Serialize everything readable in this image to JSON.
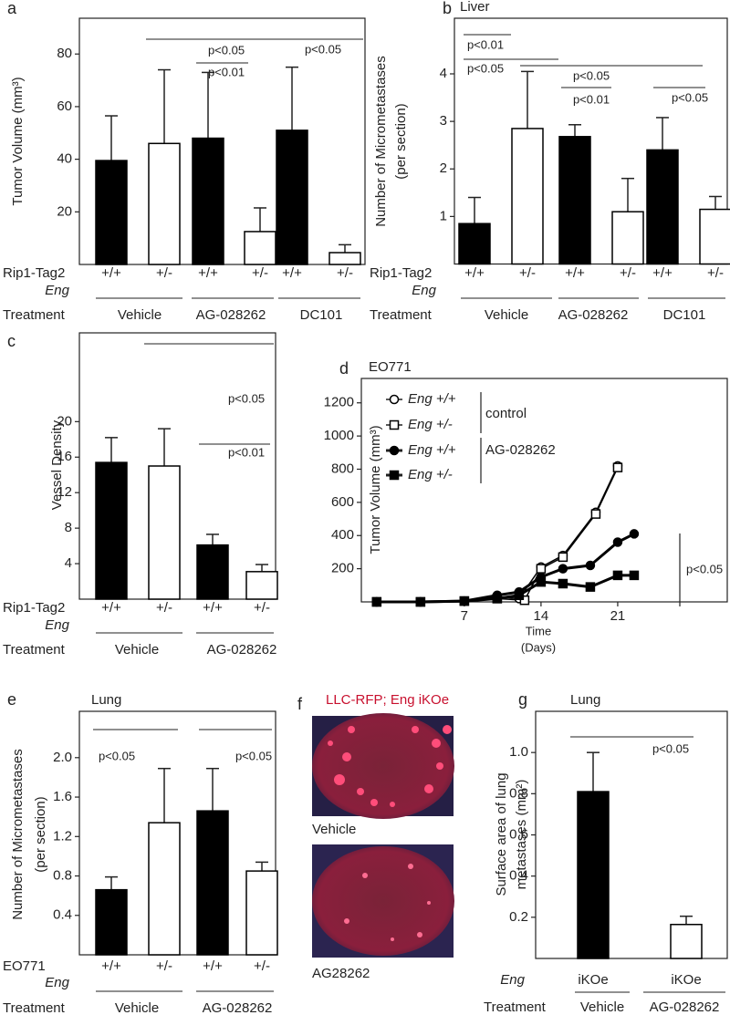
{
  "chart_data": [
    {
      "type": "bar",
      "label": "a",
      "ylabel": [
        "Tumor Volume (mm³)"
      ],
      "categories": [
        "+/+",
        "+/-",
        "+/+",
        "+/-",
        "+/+",
        "+/-"
      ],
      "values": [
        39.5,
        46,
        48,
        12.5,
        51,
        4.5
      ],
      "errors": [
        17,
        28,
        25,
        9,
        24,
        3
      ],
      "colors": [
        "#000000",
        "#ffffff",
        "#000000",
        "#ffffff",
        "#000000",
        "#ffffff"
      ],
      "row_labels": [
        "Rip1-Tag2",
        "Eng",
        "Treatment"
      ],
      "groups": [
        "Vehicle",
        "AG-028262",
        "DC101"
      ],
      "annotations": [
        "p<0.05",
        "p<0.01",
        "p<0.05"
      ],
      "ylim": [
        0,
        93.6
      ],
      "yticks": [
        20,
        40,
        60,
        80
      ]
    },
    {
      "type": "bar",
      "label": "b",
      "title": "Liver",
      "ylabel": [
        "Number of Micrometastases",
        "(per section)"
      ],
      "categories": [
        "+/+",
        "+/-",
        "+/+",
        "+/-",
        "+/+",
        "+/-"
      ],
      "values": [
        0.85,
        2.85,
        2.68,
        1.1,
        2.4,
        1.15
      ],
      "errors": [
        0.55,
        1.2,
        0.25,
        0.7,
        0.68,
        0.27
      ],
      "colors": [
        "#000000",
        "#ffffff",
        "#000000",
        "#ffffff",
        "#000000",
        "#ffffff"
      ],
      "row_labels": [
        "Rip1-Tag2",
        "Eng",
        "Treatment"
      ],
      "groups": [
        "Vehicle",
        "AG-028262",
        "DC101"
      ],
      "annotations": [
        "p<0.01",
        "p<0.05",
        "p<0.05",
        "p<0.01",
        "p<0.05"
      ],
      "ylim": [
        0,
        5.17
      ],
      "yticks": [
        1,
        2,
        3,
        4
      ]
    },
    {
      "type": "bar",
      "label": "c",
      "ylabel": [
        "Vessel Density"
      ],
      "categories": [
        "+/+",
        "+/-",
        "+/+",
        "+/-"
      ],
      "values": [
        15.4,
        15,
        6.1,
        3.1
      ],
      "errors": [
        2.8,
        4.2,
        1.2,
        0.8
      ],
      "colors": [
        "#000000",
        "#ffffff",
        "#000000",
        "#ffffff"
      ],
      "row_labels": [
        "Rip1-Tag2",
        "Eng",
        "Treatment"
      ],
      "groups": [
        "Vehicle",
        "AG-028262"
      ],
      "annotations": [
        "p<0.05",
        "p<0.01"
      ],
      "ylim": [
        0,
        30
      ],
      "yticks": [
        4,
        8,
        12,
        16,
        20
      ]
    },
    {
      "type": "line",
      "label": "d",
      "title": "EO771",
      "ylabel": "Tumor Volume (mm³)",
      "xlabel": [
        "Time",
        "(Days)"
      ],
      "series": [
        {
          "name": "Eng +/+",
          "marker": "circle",
          "filled": false,
          "color": "#000000",
          "x": [
            -1,
            3,
            7,
            10,
            12,
            14,
            16,
            19,
            21
          ],
          "values": [
            0,
            0,
            5,
            30,
            20,
            210,
            280,
            540,
            820
          ]
        },
        {
          "name": "Eng +/-",
          "marker": "square",
          "filled": false,
          "color": "#000000",
          "x": [
            -1,
            3,
            7,
            10,
            12.5,
            14,
            16,
            19,
            21
          ],
          "values": [
            0,
            0,
            5,
            20,
            10,
            200,
            270,
            530,
            810
          ]
        },
        {
          "name": "Eng +/+",
          "marker": "circle",
          "filled": true,
          "color": "#000000",
          "x": [
            -1,
            3,
            7,
            10,
            12,
            14,
            16,
            18.5,
            21,
            22.5
          ],
          "values": [
            0,
            0,
            5,
            40,
            60,
            150,
            200,
            220,
            360,
            410
          ]
        },
        {
          "name": "Eng +/-",
          "marker": "square",
          "filled": true,
          "color": "#000000",
          "x": [
            -1,
            3,
            7,
            10,
            12,
            14,
            16,
            18.5,
            21,
            22.5
          ],
          "values": [
            0,
            0,
            5,
            20,
            40,
            120,
            110,
            90,
            160,
            160
          ]
        }
      ],
      "legend_groups": [
        "control",
        "AG-028262"
      ],
      "annotations": [
        "p<0.05"
      ],
      "xlim": [
        -2.4,
        31
      ],
      "xticks": [
        7,
        14,
        21
      ],
      "ylim": [
        0,
        1347
      ],
      "yticks": [
        200,
        400,
        600,
        800,
        1000,
        1200
      ]
    },
    {
      "type": "bar",
      "label": "e",
      "title": "Lung",
      "ylabel": [
        "Number of Micrometastases",
        "(per section)"
      ],
      "categories": [
        "+/+",
        "+/-",
        "+/+",
        "+/-"
      ],
      "values": [
        0.66,
        1.34,
        1.46,
        0.85
      ],
      "errors": [
        0.13,
        0.55,
        0.43,
        0.09
      ],
      "colors": [
        "#000000",
        "#ffffff",
        "#000000",
        "#ffffff"
      ],
      "row_labels": [
        "EO771",
        "Eng",
        "Treatment"
      ],
      "groups": [
        "Vehicle",
        "AG-028262"
      ],
      "annotations": [
        "p<0.05",
        "p<0.05"
      ],
      "ylim": [
        0,
        2.47
      ],
      "yticks": [
        0.4,
        0.8,
        1.2,
        1.6,
        {
          "value": 2,
          "label": "2.0"
        }
      ]
    },
    {
      "type": "image",
      "label": "f",
      "title": "LLC-RFP; Eng iKOe",
      "captions": [
        "Vehicle",
        "AG28262"
      ]
    },
    {
      "type": "bar",
      "label": "g",
      "title": "Lung",
      "ylabel": [
        "Surface area of lung",
        "metastases (mm²)"
      ],
      "categories": [
        "iKOe",
        "iKOe"
      ],
      "values": [
        0.81,
        0.165
      ],
      "errors": [
        0.19,
        0.04
      ],
      "colors": [
        "#000000",
        "#ffffff"
      ],
      "row_labels": [
        "Eng",
        "Treatment"
      ],
      "groups": [
        "Vehicle",
        "AG-028262"
      ],
      "annotations": [
        "p<0.05"
      ],
      "ylim": [
        0,
        1.2
      ],
      "yticks": [
        0.2,
        0.4,
        0.6,
        0.8,
        {
          "value": 1,
          "label": "1.0"
        }
      ]
    }
  ]
}
